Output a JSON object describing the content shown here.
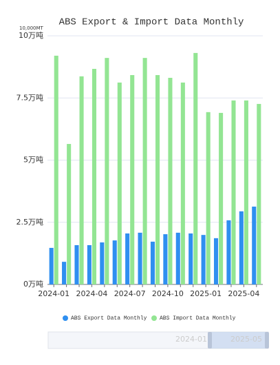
{
  "chart_data": {
    "type": "bar",
    "title": "ABS Export & Import Data Monthly",
    "y_unit": "10,000MT",
    "categories": [
      "2024-01",
      null,
      null,
      "2024-04",
      null,
      null,
      "2024-07",
      null,
      null,
      "2024-10",
      null,
      null,
      "2025-01",
      null,
      null,
      "2025-04",
      null
    ],
    "series": [
      {
        "name": "ABS Export Data Monthly",
        "color": "#2f8ff0",
        "values": [
          1.47,
          0.91,
          1.58,
          1.58,
          1.69,
          1.77,
          2.05,
          2.08,
          1.72,
          2.02,
          2.08,
          2.05,
          1.99,
          1.86,
          2.58,
          2.94,
          3.13
        ]
      },
      {
        "name": "ABS Import Data Monthly",
        "color": "#93e593",
        "values": [
          9.2,
          5.65,
          8.37,
          8.67,
          9.11,
          8.12,
          8.42,
          9.11,
          8.42,
          8.31,
          8.12,
          9.31,
          6.93,
          6.9,
          7.4,
          7.4,
          7.26
        ]
      }
    ],
    "ylim": [
      0,
      10
    ],
    "yticks": [
      {
        "value": 0,
        "label": "0万吨"
      },
      {
        "value": 2.5,
        "label": "2.5万吨"
      },
      {
        "value": 5,
        "label": "5万吨"
      },
      {
        "value": 7.5,
        "label": "7.5万吨"
      },
      {
        "value": 10,
        "label": "10万吨"
      }
    ],
    "grid": true,
    "zoom_labels": [
      "2024-01",
      "2025-05"
    ]
  }
}
